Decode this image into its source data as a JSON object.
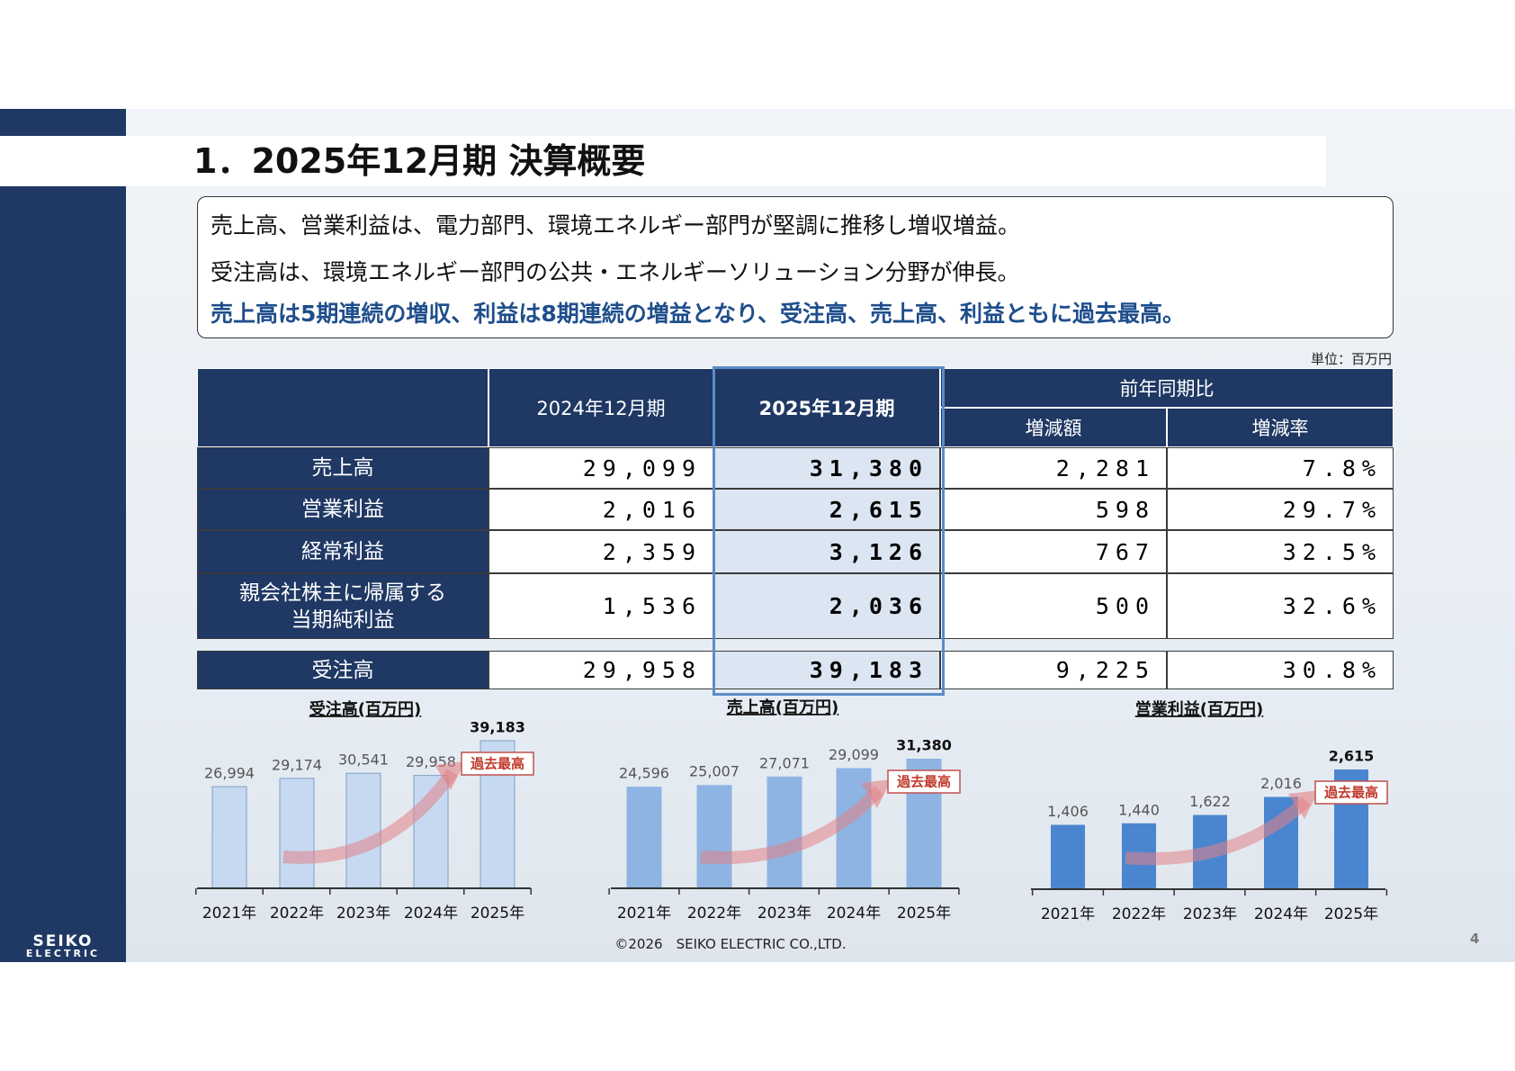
{
  "title": "1．2025年12月期 決算概要",
  "summary": [
    "売上高、営業利益は、電力部門、環境エネルギー部門が堅調に推移し増収増益。",
    "受注高は、環境エネルギー部門の公共・エネルギーソリューション分野が伸長。",
    "売上高は5期連続の増収、利益は8期連続の増益となり、受注高、売上高、利益ともに過去最高。"
  ],
  "unit": "単位：百万円",
  "table": {
    "header": {
      "prev": "2024年12月期",
      "curr": "2025年12月期",
      "group": "前年同期比",
      "sub": [
        "増減額",
        "増減率"
      ]
    },
    "rows": [
      {
        "label": "売上高",
        "values": [
          "29,099",
          "31,380",
          "2,281",
          "7.8%"
        ]
      },
      {
        "label": "営業利益",
        "values": [
          "2,016",
          "2,615",
          "598",
          "29.7%"
        ]
      },
      {
        "label": "経常利益",
        "values": [
          "2,359",
          "3,126",
          "767",
          "32.5%"
        ]
      },
      {
        "label": "親会社株主に帰属する\n当期純利益",
        "values": [
          "1,536",
          "2,036",
          "500",
          "32.6%"
        ]
      }
    ],
    "orders": {
      "label": "受注高",
      "values": [
        "29,958",
        "39,183",
        "9,225",
        "30.8%"
      ]
    }
  },
  "charts": [
    {
      "type": "bar",
      "title": "受注高(百万円)",
      "categories": [
        "2021年",
        "2022年",
        "2023年",
        "2024年",
        "2025年"
      ],
      "values": [
        26994,
        29174,
        30541,
        29958,
        39183
      ],
      "value_labels": [
        "26,994",
        "29,174",
        "30,541",
        "29,958",
        "39,183"
      ],
      "color": "#c6d9f1",
      "annotation": "過去最高"
    },
    {
      "type": "bar",
      "title": "売上高(百万円)",
      "categories": [
        "2021年",
        "2022年",
        "2023年",
        "2024年",
        "2025年"
      ],
      "values": [
        24596,
        25007,
        27071,
        29099,
        31380
      ],
      "value_labels": [
        "24,596",
        "25,007",
        "27,071",
        "29,099",
        "31,380"
      ],
      "color": "#8eb4e3",
      "annotation": "過去最高"
    },
    {
      "type": "bar",
      "title": "営業利益(百万円)",
      "categories": [
        "2021年",
        "2022年",
        "2023年",
        "2024年",
        "2025年"
      ],
      "values": [
        1406,
        1440,
        1622,
        2016,
        2615
      ],
      "value_labels": [
        "1,406",
        "1,440",
        "1,622",
        "2,016",
        "2,615"
      ],
      "color": "#4a86d0",
      "annotation": "過去最高"
    }
  ],
  "footer": "©2026　SEIKO ELECTRIC CO.,LTD.",
  "page": "4",
  "logo": [
    "SEIKO",
    "ELECTRIC"
  ]
}
